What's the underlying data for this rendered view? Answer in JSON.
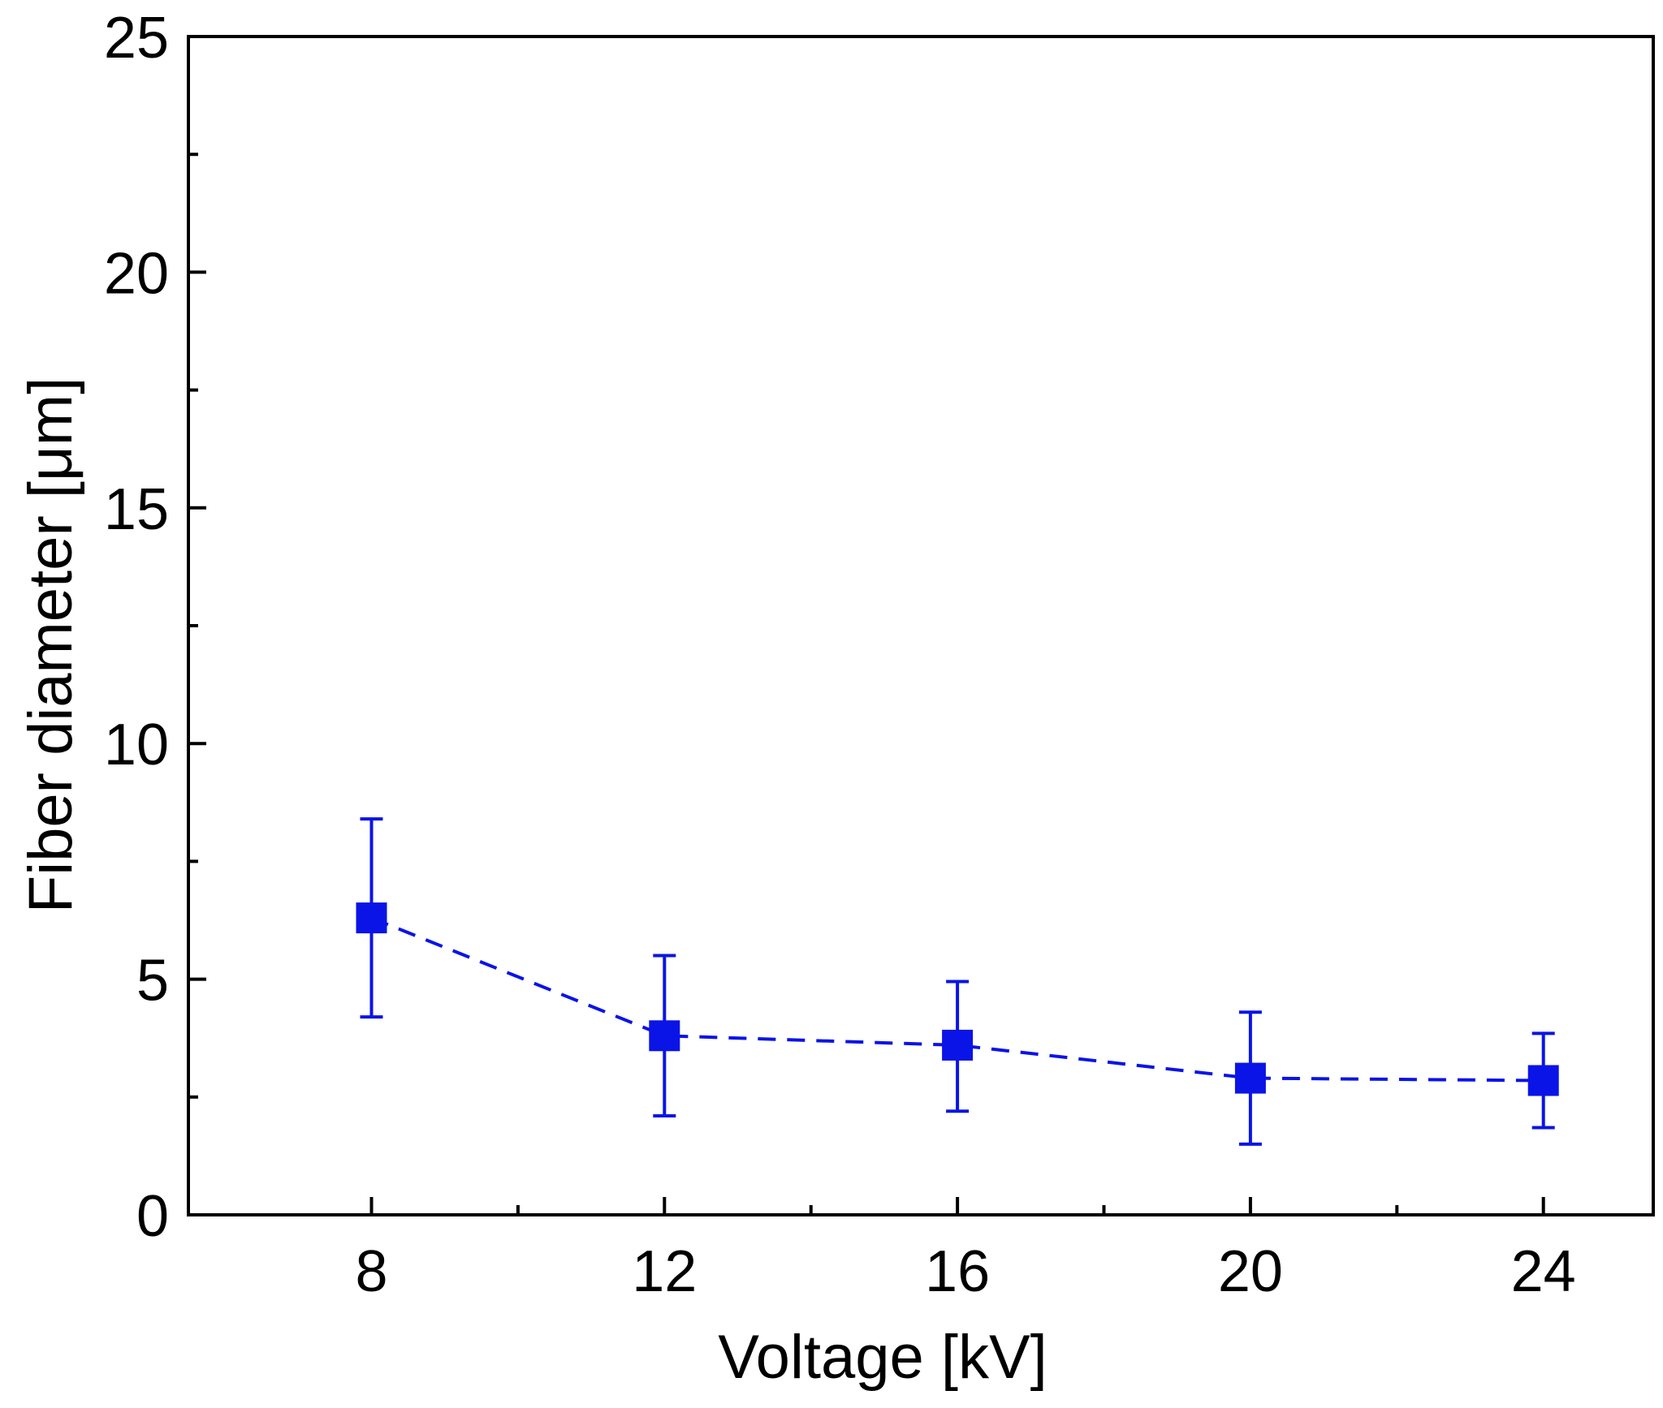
{
  "chart_data": {
    "type": "scatter",
    "xlabel": "Voltage [kV]",
    "ylabel": "Fiber diameter [μm]",
    "xlim": [
      5.5,
      25.5
    ],
    "ylim": [
      0,
      25
    ],
    "x_ticks": [
      8,
      12,
      16,
      20,
      24
    ],
    "x_tick_labels": [
      "8",
      "12",
      "16",
      "20",
      "24"
    ],
    "x_minor_ticks": [
      10,
      14,
      18,
      22
    ],
    "y_ticks": [
      0,
      5,
      10,
      15,
      20,
      25
    ],
    "y_tick_labels": [
      "0",
      "5",
      "10",
      "15",
      "20",
      "25"
    ],
    "y_minor_ticks": [
      2.5,
      7.5,
      12.5,
      17.5,
      22.5
    ],
    "grid": false,
    "series": [
      {
        "marker": "square",
        "line_style": "dashed",
        "color": "#0a14e6",
        "x": [
          8,
          12,
          16,
          20,
          24
        ],
        "y": [
          6.3,
          3.8,
          3.6,
          2.9,
          2.85
        ],
        "error_low": [
          4.2,
          2.1,
          2.2,
          1.5,
          1.85
        ],
        "error_high": [
          8.4,
          5.5,
          4.95,
          4.3,
          3.85
        ]
      }
    ]
  }
}
